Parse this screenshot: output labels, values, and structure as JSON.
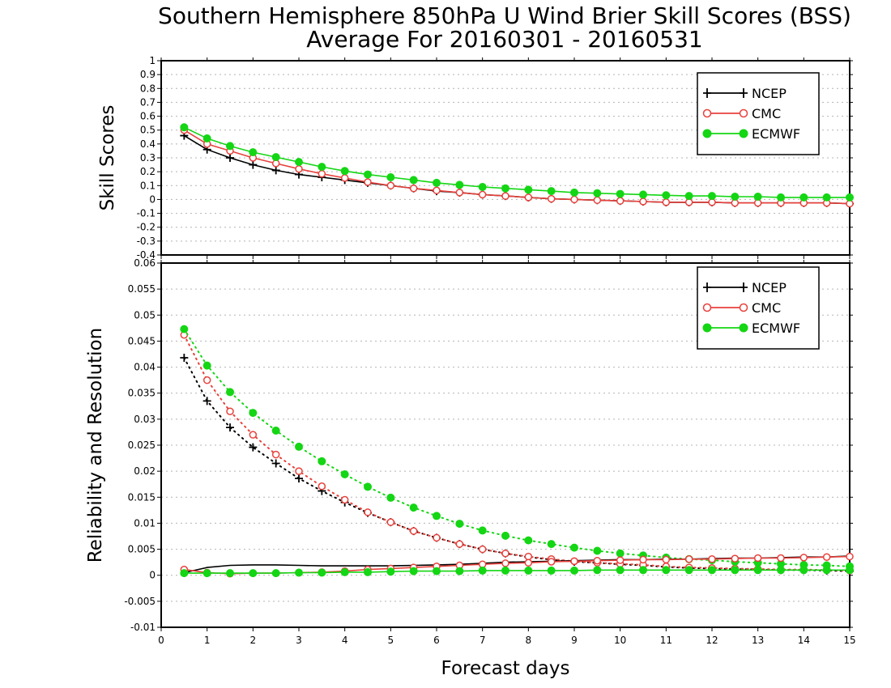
{
  "title_line1": "Southern Hemisphere 850hPa U Wind Brier Skill Scores (BSS)",
  "title_line2": "Average For 20160301 - 20160531",
  "xlabel": "Forecast days",
  "colors": {
    "NCEP": "#000000",
    "CMC": "#e8413c",
    "ECMWF": "#14d614",
    "grid": "#b4b4b4"
  },
  "chart_data": [
    {
      "type": "line",
      "ylabel": "Skill Scores",
      "xlim": [
        0,
        15
      ],
      "ylim": [
        -0.4,
        1
      ],
      "x_ticks": [
        0,
        1,
        2,
        3,
        4,
        5,
        6,
        7,
        8,
        9,
        10,
        11,
        12,
        13,
        14,
        15
      ],
      "y_ticks": [
        -0.4,
        -0.3,
        -0.2,
        -0.1,
        0,
        0.1,
        0.2,
        0.3,
        0.4,
        0.5,
        0.6,
        0.7,
        0.8,
        0.9,
        1
      ],
      "y_tick_labels": [
        "-0.4",
        "-0.3",
        "-0.2",
        "-0.1",
        "0",
        "0.1",
        "0.2",
        "0.3",
        "0.4",
        "0.5",
        "0.6",
        "0.7",
        "0.8",
        "0.9",
        "1"
      ],
      "grid": true,
      "legend": [
        "NCEP",
        "CMC",
        "ECMWF"
      ],
      "legend_position": "top-right",
      "x": [
        0.5,
        1,
        1.5,
        2,
        2.5,
        3,
        3.5,
        4,
        4.5,
        5,
        5.5,
        6,
        6.5,
        7,
        7.5,
        8,
        8.5,
        9,
        9.5,
        10,
        10.5,
        11,
        11.5,
        12,
        12.5,
        13,
        13.5,
        14,
        14.5,
        15
      ],
      "series": [
        {
          "name": "NCEP",
          "marker": "plus",
          "style": "solid",
          "values": [
            0.46,
            0.36,
            0.3,
            0.25,
            0.21,
            0.18,
            0.16,
            0.14,
            0.12,
            0.1,
            0.08,
            0.06,
            0.05,
            0.035,
            0.025,
            0.015,
            0.005,
            0.0,
            -0.005,
            -0.01,
            -0.015,
            -0.02,
            -0.02,
            -0.02,
            -0.025,
            -0.025,
            -0.025,
            -0.025,
            -0.025,
            -0.03
          ]
        },
        {
          "name": "CMC",
          "marker": "open-circle",
          "style": "solid",
          "values": [
            0.5,
            0.4,
            0.35,
            0.3,
            0.26,
            0.22,
            0.185,
            0.155,
            0.125,
            0.1,
            0.08,
            0.065,
            0.05,
            0.035,
            0.025,
            0.015,
            0.005,
            0.0,
            -0.005,
            -0.01,
            -0.015,
            -0.02,
            -0.02,
            -0.02,
            -0.025,
            -0.025,
            -0.025,
            -0.025,
            -0.025,
            -0.03
          ]
        },
        {
          "name": "ECMWF",
          "marker": "filled-circle",
          "style": "solid",
          "values": [
            0.52,
            0.44,
            0.385,
            0.34,
            0.305,
            0.27,
            0.235,
            0.205,
            0.18,
            0.16,
            0.14,
            0.12,
            0.105,
            0.09,
            0.08,
            0.07,
            0.06,
            0.05,
            0.045,
            0.04,
            0.035,
            0.03,
            0.025,
            0.025,
            0.02,
            0.02,
            0.015,
            0.015,
            0.015,
            0.015
          ]
        }
      ]
    },
    {
      "type": "line",
      "ylabel": "Reliability and Resolution",
      "xlim": [
        0,
        15
      ],
      "ylim": [
        -0.01,
        0.06
      ],
      "x_ticks": [
        0,
        1,
        2,
        3,
        4,
        5,
        6,
        7,
        8,
        9,
        10,
        11,
        12,
        13,
        14,
        15
      ],
      "y_ticks": [
        -0.01,
        -0.005,
        0,
        0.005,
        0.01,
        0.015,
        0.02,
        0.025,
        0.03,
        0.035,
        0.04,
        0.045,
        0.05,
        0.055,
        0.06
      ],
      "y_tick_labels": [
        "-0.01",
        "-0.005",
        "0",
        "0.005",
        "0.01",
        "0.015",
        "0.02",
        "0.025",
        "0.03",
        "0.035",
        "0.04",
        "0.045",
        "0.05",
        "0.055",
        "0.06"
      ],
      "grid": true,
      "legend": [
        "NCEP",
        "CMC",
        "ECMWF"
      ],
      "legend_position": "top-right",
      "x": [
        0.5,
        1,
        1.5,
        2,
        2.5,
        3,
        3.5,
        4,
        4.5,
        5,
        5.5,
        6,
        6.5,
        7,
        7.5,
        8,
        8.5,
        9,
        9.5,
        10,
        10.5,
        11,
        11.5,
        12,
        12.5,
        13,
        13.5,
        14,
        14.5,
        15
      ],
      "series": [
        {
          "name": "NCEP",
          "kind": "resolution",
          "marker": "plus",
          "style": "dotted",
          "values": [
            0.0418,
            0.0335,
            0.0284,
            0.0246,
            0.0215,
            0.0186,
            0.0162,
            0.014,
            0.012,
            0.0102,
            0.0085,
            0.0072,
            0.006,
            0.005,
            0.0042,
            0.0035,
            0.003,
            0.0026,
            0.0024,
            0.0021,
            0.0019,
            0.0016,
            0.0014,
            0.0013,
            0.0012,
            0.0011,
            0.001,
            0.001,
            0.0009,
            0.0008
          ]
        },
        {
          "name": "CMC",
          "kind": "resolution",
          "marker": "open-circle",
          "style": "dotted",
          "values": [
            0.0462,
            0.0375,
            0.0315,
            0.027,
            0.0232,
            0.02,
            0.0171,
            0.0145,
            0.0121,
            0.0102,
            0.0085,
            0.0072,
            0.006,
            0.005,
            0.0042,
            0.0036,
            0.0031,
            0.0027,
            0.0024,
            0.0022,
            0.002,
            0.0017,
            0.0015,
            0.0014,
            0.0013,
            0.0012,
            0.0011,
            0.0011,
            0.001,
            0.0009
          ]
        },
        {
          "name": "ECMWF",
          "kind": "resolution",
          "marker": "filled-circle",
          "style": "dotted",
          "values": [
            0.0473,
            0.0403,
            0.0352,
            0.0312,
            0.0278,
            0.0247,
            0.0219,
            0.0194,
            0.017,
            0.0149,
            0.013,
            0.0114,
            0.0099,
            0.0086,
            0.0076,
            0.0067,
            0.006,
            0.0053,
            0.0047,
            0.0042,
            0.0038,
            0.0034,
            0.0031,
            0.0029,
            0.0026,
            0.0024,
            0.0022,
            0.002,
            0.0019,
            0.0017
          ]
        },
        {
          "name": "NCEP",
          "kind": "reliability",
          "marker": "none",
          "style": "solid",
          "values": [
            0.0005,
            0.0015,
            0.0019,
            0.002,
            0.002,
            0.0019,
            0.0018,
            0.0018,
            0.0018,
            0.0018,
            0.0019,
            0.002,
            0.0021,
            0.0023,
            0.0025,
            0.0026,
            0.0027,
            0.0028,
            0.0029,
            0.003,
            0.003,
            0.0031,
            0.0031,
            0.0032,
            0.0033,
            0.0033,
            0.0034,
            0.0035,
            0.0035,
            0.0037
          ]
        },
        {
          "name": "CMC",
          "kind": "reliability",
          "marker": "open-circle",
          "style": "solid",
          "values": [
            0.0011,
            0.0005,
            0.0003,
            0.0004,
            0.0004,
            0.0005,
            0.0006,
            0.0008,
            0.0011,
            0.0013,
            0.0015,
            0.0017,
            0.0019,
            0.0021,
            0.0023,
            0.0024,
            0.0026,
            0.0027,
            0.0028,
            0.0029,
            0.003,
            0.003,
            0.0031,
            0.0031,
            0.0032,
            0.0033,
            0.0033,
            0.0034,
            0.0035,
            0.0036
          ]
        },
        {
          "name": "ECMWF",
          "kind": "reliability",
          "marker": "filled-circle",
          "style": "solid",
          "values": [
            0.0004,
            0.0004,
            0.0004,
            0.0004,
            0.0004,
            0.0005,
            0.0005,
            0.0006,
            0.0006,
            0.0007,
            0.0008,
            0.0008,
            0.0008,
            0.0009,
            0.0009,
            0.0009,
            0.0009,
            0.0009,
            0.001,
            0.001,
            0.001,
            0.001,
            0.001,
            0.001,
            0.001,
            0.001,
            0.001,
            0.001,
            0.001,
            0.001
          ]
        }
      ]
    }
  ]
}
